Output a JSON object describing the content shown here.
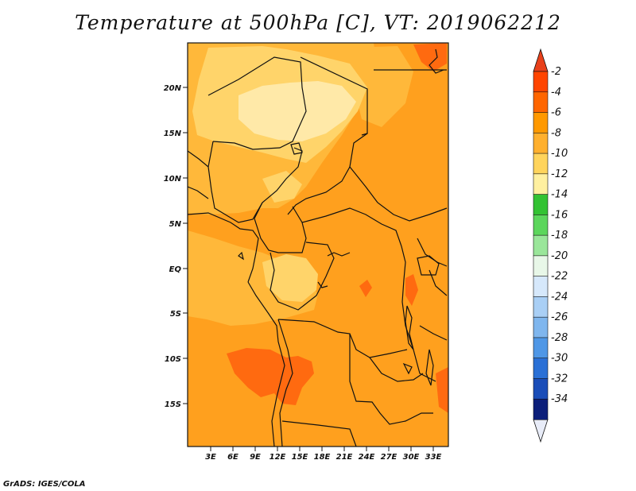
{
  "title": "Temperature at 500hPa [C], VT: 2019062212",
  "footer": "GrADS: IGES/COLA",
  "lat_labels": [
    "20N",
    "15N",
    "10N",
    "5N",
    "EQ",
    "5S",
    "10S",
    "15S"
  ],
  "lon_labels": [
    "3E",
    "6E",
    "9E",
    "12E",
    "15E",
    "18E",
    "21E",
    "24E",
    "27E",
    "30E",
    "33E"
  ],
  "colorbar": {
    "labels": [
      "-2",
      "-4",
      "-6",
      "-8",
      "-10",
      "-12",
      "-14",
      "-16",
      "-18",
      "-20",
      "-22",
      "-24",
      "-26",
      "-28",
      "-30",
      "-32",
      "-34"
    ],
    "colors": [
      "#ff4500",
      "#ff6600",
      "#ff9900",
      "#ffb02e",
      "#ffd45c",
      "#fff0a0",
      "#33c233",
      "#5cd65c",
      "#9ae69a",
      "#e8f7e8",
      "#d6e8fb",
      "#a9cff5",
      "#7fb6ee",
      "#4f97e6",
      "#2a70d6",
      "#1a4db8",
      "#0c1f7a"
    ],
    "top_tip": "#e8401a",
    "bottom_tip": "#e8ecf8"
  },
  "map_colors": {
    "base": "#ffa01e",
    "light": "#ffb83a",
    "pale": "#ffd46a",
    "palest": "#ffe9a8",
    "warm": "#ff6a10",
    "border": "#111111"
  }
}
